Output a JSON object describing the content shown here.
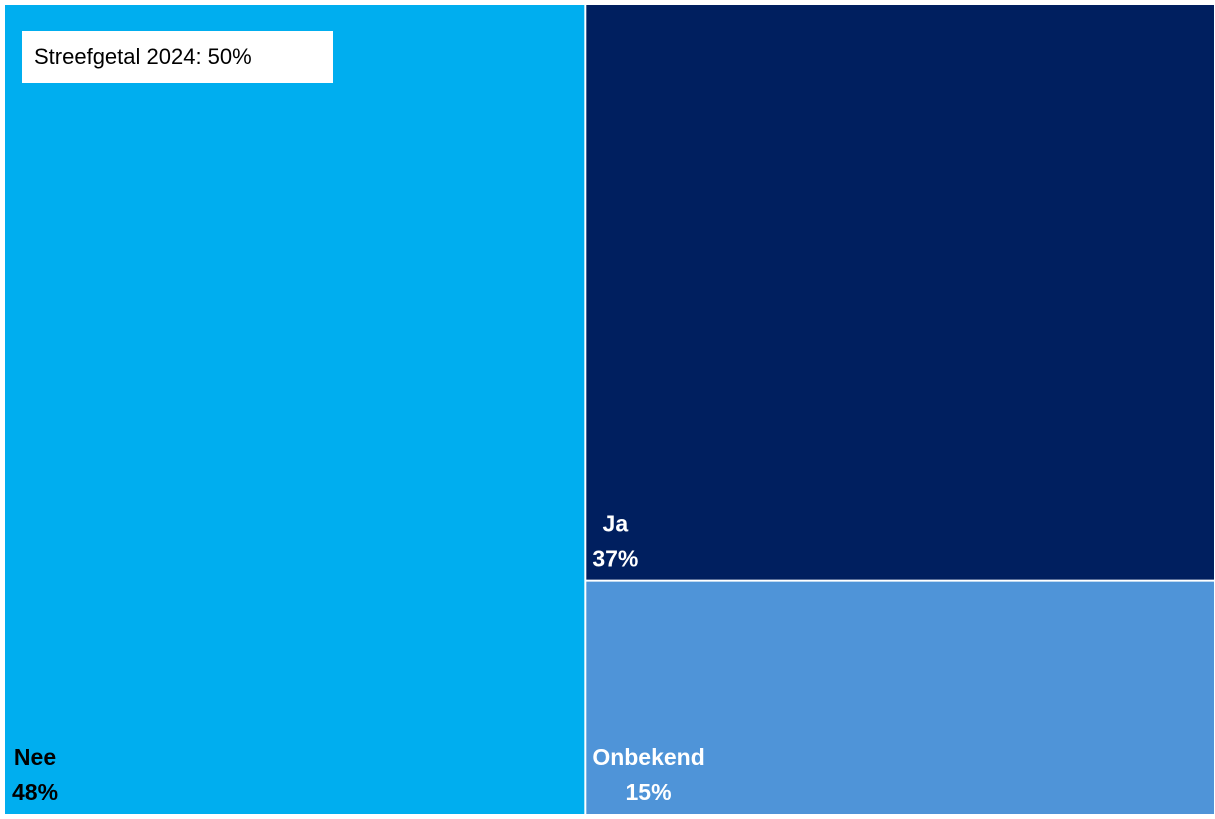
{
  "chart_data": {
    "type": "treemap",
    "title": "",
    "items": [
      {
        "label": "Nee",
        "value": 48,
        "value_label": "48%",
        "color": "#00AEEF",
        "text_color": "#000000"
      },
      {
        "label": "Ja",
        "value": 37,
        "value_label": "37%",
        "color": "#001F5F",
        "text_color": "#FFFFFF"
      },
      {
        "label": "Onbekend",
        "value": 15,
        "value_label": "15%",
        "color": "#4F94D8",
        "text_color": "#FFFFFF"
      }
    ],
    "annotation": "Streefgetal 2024: 50%",
    "background": "#FFFFFF"
  }
}
